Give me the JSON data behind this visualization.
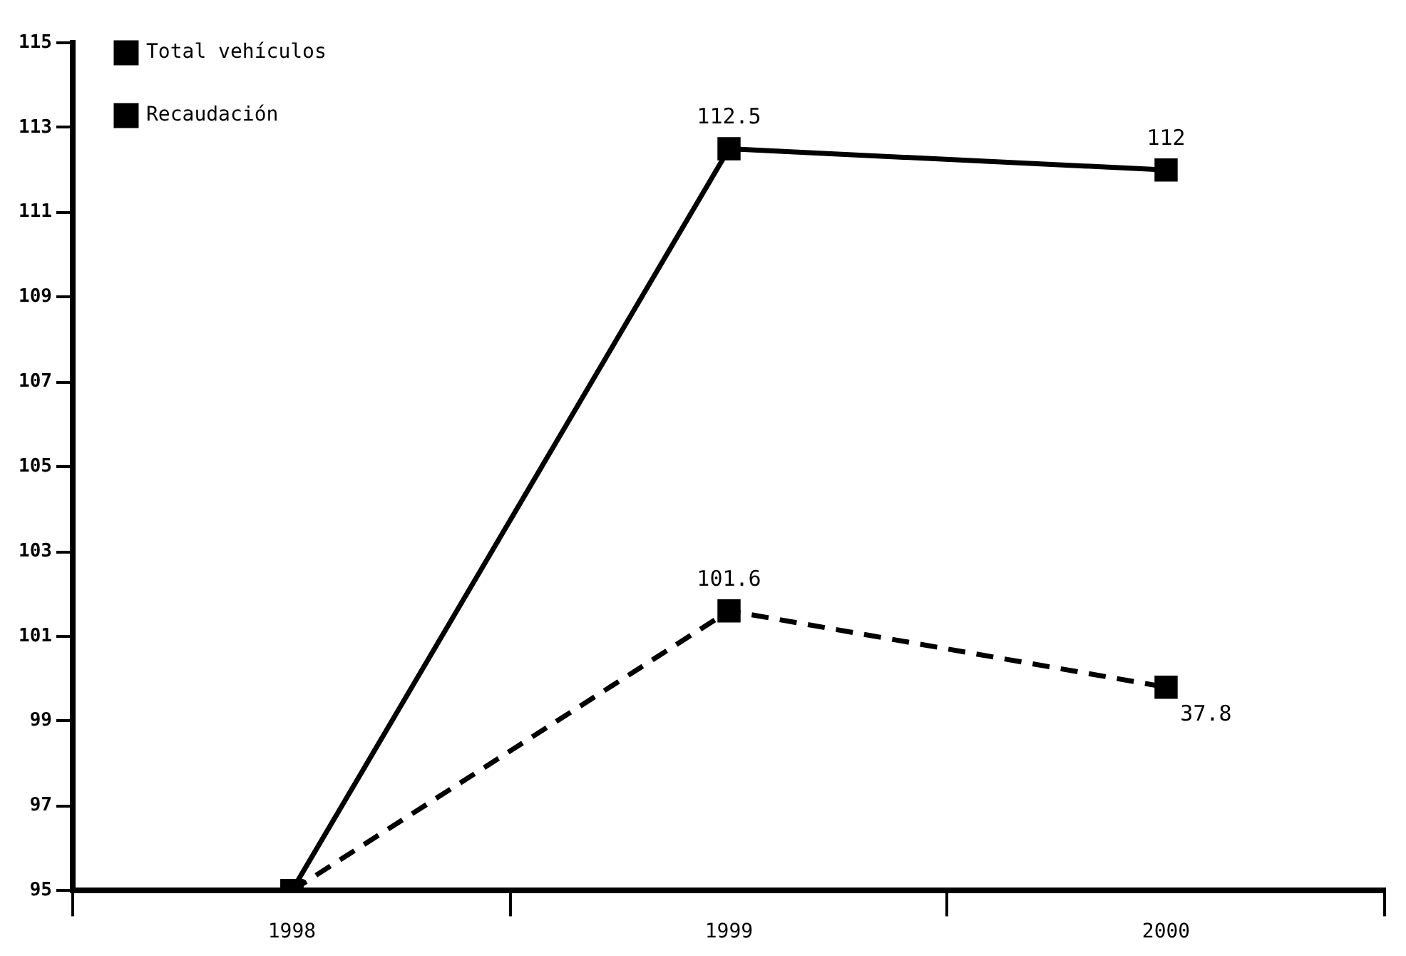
{
  "chart_data": {
    "type": "line",
    "categories": [
      "1998",
      "1999",
      "2000"
    ],
    "series": [
      {
        "name": "Total vehículos",
        "color": "#000000",
        "values": [
          95,
          112.5,
          112
        ],
        "value_labels": [
          null,
          "112.5",
          "112"
        ],
        "line_style": "solid"
      },
      {
        "name": "Recaudación",
        "color": "#000000",
        "values": [
          95,
          101.6,
          99.8
        ],
        "value_labels": [
          null,
          "101.6",
          null
        ],
        "line_style": "dashed"
      }
    ],
    "annotations": [
      {
        "text": "37.8",
        "x": "2000",
        "y": 99.8
      }
    ],
    "ylim": [
      95,
      115
    ],
    "yticks": [
      95,
      97,
      99,
      101,
      103,
      105,
      107,
      109,
      111,
      113,
      115
    ],
    "grid": false,
    "legend": "top left",
    "marker": "square"
  }
}
